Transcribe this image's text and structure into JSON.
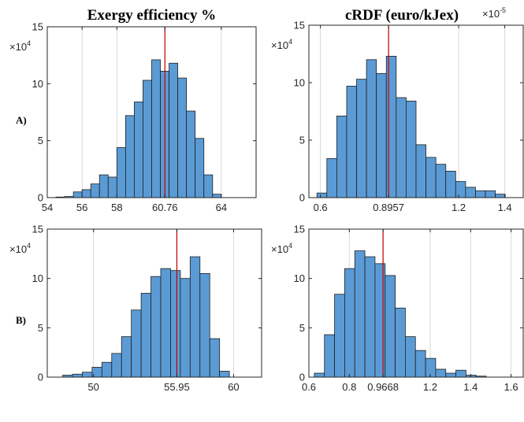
{
  "row_labels": [
    "A)",
    "B)"
  ],
  "colors": {
    "bar_fill": "#5b9bd5",
    "bar_edge": "#1f1f1f",
    "marker_line": "#c00000",
    "grid": "#d9d9d9",
    "axis": "#262626"
  },
  "chart_data": [
    {
      "type": "bar",
      "title": "Exergy efficiency %",
      "title_multiplier": "",
      "y_multiplier": {
        "base": "×10",
        "exponent": "4"
      },
      "ylim": [
        0,
        15
      ],
      "yticks": [
        0,
        5,
        10,
        15
      ],
      "xlim": [
        54,
        66
      ],
      "xticks": [
        54,
        56,
        58,
        60.76,
        64
      ],
      "xtick_labels": [
        "54",
        "56",
        "58",
        "60.76",
        "64"
      ],
      "grid": "vertical",
      "marker_x": 60.76,
      "bin_start": 54.5,
      "bin_width": 0.5,
      "values": [
        0.05,
        0.1,
        0.5,
        0.7,
        1.2,
        2.0,
        1.8,
        4.4,
        7.2,
        8.4,
        10.3,
        12.1,
        11.1,
        11.8,
        10.5,
        7.6,
        5.2,
        2.0,
        0.3
      ]
    },
    {
      "type": "bar",
      "title": "cRDF (euro/kJex)",
      "title_multiplier": "×10",
      "title_multiplier_exp": "-5",
      "y_multiplier": {
        "base": "×10",
        "exponent": "4"
      },
      "ylim": [
        0,
        15
      ],
      "yticks": [
        0,
        5,
        10,
        15
      ],
      "xlim": [
        0.55,
        1.48
      ],
      "xticks": [
        0.6,
        0.8957,
        1.2,
        1.4
      ],
      "xtick_labels": [
        "0.6",
        "0.8957",
        "1.2",
        "1.4"
      ],
      "grid": "vertical",
      "marker_x": 0.8957,
      "bin_start": 0.585,
      "bin_width": 0.043,
      "values": [
        0.4,
        3.4,
        7.1,
        9.7,
        10.3,
        12.0,
        10.8,
        12.3,
        8.7,
        8.4,
        4.6,
        3.5,
        2.9,
        2.3,
        1.4,
        0.9,
        0.6,
        0.6,
        0.3
      ]
    },
    {
      "type": "bar",
      "title": "",
      "title_multiplier": "",
      "y_multiplier": {
        "base": "×10",
        "exponent": "4"
      },
      "ylim": [
        0,
        15
      ],
      "yticks": [
        0,
        5,
        10,
        15
      ],
      "xlim": [
        46.7,
        62.0
      ],
      "xticks": [
        50,
        55.95,
        60
      ],
      "xtick_labels": [
        "50",
        "55.95",
        "60"
      ],
      "grid": "vertical",
      "marker_x": 55.95,
      "bin_start": 47.8,
      "bin_width": 0.7,
      "values": [
        0.2,
        0.3,
        0.5,
        1.0,
        1.5,
        2.4,
        4.1,
        6.8,
        8.5,
        10.2,
        11.0,
        10.8,
        10.0,
        12.2,
        10.5,
        3.9,
        0.6
      ]
    },
    {
      "type": "bar",
      "title": "",
      "title_multiplier": "",
      "y_multiplier": {
        "base": "×10",
        "exponent": "4"
      },
      "ylim": [
        0,
        15
      ],
      "yticks": [
        0,
        5,
        10,
        15
      ],
      "xlim": [
        0.6,
        1.66
      ],
      "xticks": [
        0.6,
        0.8,
        0.9668,
        1.2,
        1.4,
        1.6
      ],
      "xtick_labels": [
        "0.6",
        "0.8",
        "0.9668",
        "1.2",
        "1.4",
        "1.6"
      ],
      "grid": "vertical",
      "marker_x": 0.9668,
      "bin_start": 0.627,
      "bin_width": 0.05,
      "values": [
        0.4,
        4.3,
        8.4,
        11.0,
        12.8,
        12.2,
        11.5,
        10.3,
        7.0,
        4.1,
        2.7,
        1.9,
        0.8,
        0.4,
        0.7,
        0.2,
        0.1
      ]
    }
  ]
}
